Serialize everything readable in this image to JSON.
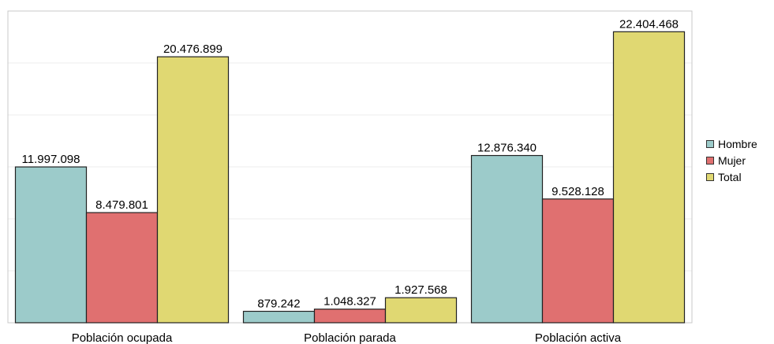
{
  "chart_data": {
    "type": "bar",
    "categories": [
      "Población ocupada",
      "Población parada",
      "Población activa"
    ],
    "series": [
      {
        "name": "Hombre",
        "values": [
          11997098,
          879242,
          12876340
        ],
        "labels": [
          "11.997.098",
          "879.242",
          "12.876.340"
        ],
        "color": "#9ccbca"
      },
      {
        "name": "Mujer",
        "values": [
          8479801,
          1048327,
          9528128
        ],
        "labels": [
          "8.479.801",
          "1.048.327",
          "9.528.128"
        ],
        "color": "#e07070"
      },
      {
        "name": "Total",
        "values": [
          20476899,
          1927568,
          22404468
        ],
        "labels": [
          "20.476.899",
          "1.927.568",
          "22.404.468"
        ],
        "color": "#e0d872"
      }
    ],
    "ylim": [
      0,
      24000000
    ],
    "grid": true,
    "legend_position": "right"
  }
}
